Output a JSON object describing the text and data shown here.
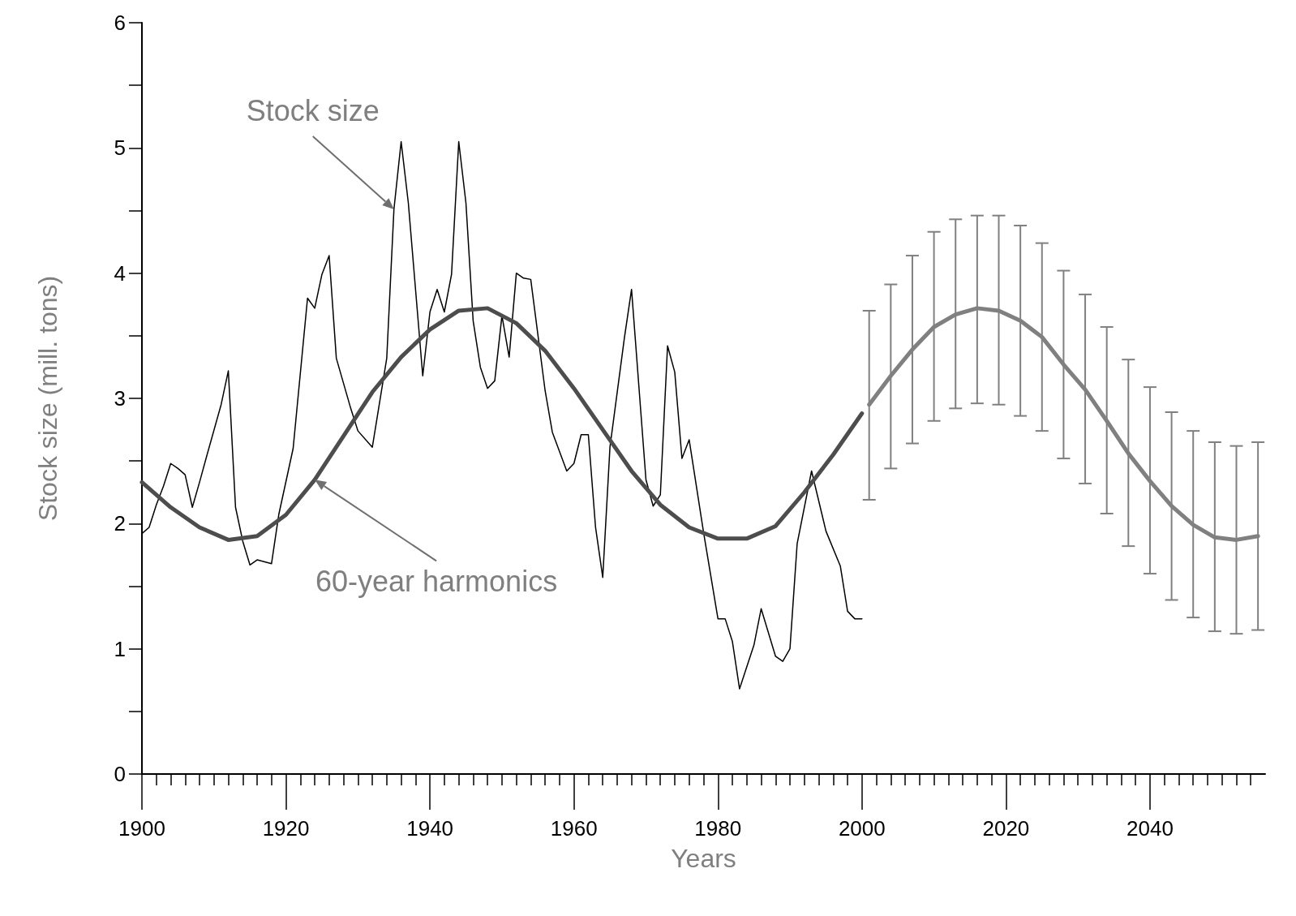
{
  "chart_data": {
    "type": "line",
    "xlabel": "Years",
    "ylabel": "Stock size (mill. tons)",
    "xlim": [
      1900,
      2056
    ],
    "ylim": [
      0,
      6
    ],
    "xticks": [
      1900,
      {
        "value": 1902,
        "label": null
      },
      {
        "value": 1904,
        "label": null
      },
      {
        "value": 1906,
        "label": null
      },
      {
        "value": 1908,
        "label": null
      },
      {
        "value": 1910,
        "label": null
      },
      {
        "value": 1912,
        "label": null
      },
      {
        "value": 1914,
        "label": null
      },
      {
        "value": 1916,
        "label": null
      },
      {
        "value": 1918,
        "label": null
      },
      1920,
      {
        "value": 1922,
        "label": null
      },
      {
        "value": 1924,
        "label": null
      },
      {
        "value": 1926,
        "label": null
      },
      {
        "value": 1928,
        "label": null
      },
      {
        "value": 1930,
        "label": null
      },
      {
        "value": 1932,
        "label": null
      },
      {
        "value": 1934,
        "label": null
      },
      {
        "value": 1936,
        "label": null
      },
      {
        "value": 1938,
        "label": null
      },
      1940,
      {
        "value": 1942,
        "label": null
      },
      {
        "value": 1944,
        "label": null
      },
      {
        "value": 1946,
        "label": null
      },
      {
        "value": 1948,
        "label": null
      },
      {
        "value": 1950,
        "label": null
      },
      {
        "value": 1952,
        "label": null
      },
      {
        "value": 1954,
        "label": null
      },
      {
        "value": 1956,
        "label": null
      },
      {
        "value": 1958,
        "label": null
      },
      1960,
      {
        "value": 1962,
        "label": null
      },
      {
        "value": 1964,
        "label": null
      },
      {
        "value": 1966,
        "label": null
      },
      {
        "value": 1968,
        "label": null
      },
      {
        "value": 1970,
        "label": null
      },
      {
        "value": 1972,
        "label": null
      },
      {
        "value": 1974,
        "label": null
      },
      {
        "value": 1976,
        "label": null
      },
      {
        "value": 1978,
        "label": null
      },
      1980,
      {
        "value": 1982,
        "label": null
      },
      {
        "value": 1984,
        "label": null
      },
      {
        "value": 1986,
        "label": null
      },
      {
        "value": 1988,
        "label": null
      },
      {
        "value": 1990,
        "label": null
      },
      {
        "value": 1992,
        "label": null
      },
      {
        "value": 1994,
        "label": null
      },
      {
        "value": 1996,
        "label": null
      },
      {
        "value": 1998,
        "label": null
      },
      2000,
      {
        "value": 2002,
        "label": null
      },
      {
        "value": 2004,
        "label": null
      },
      {
        "value": 2006,
        "label": null
      },
      {
        "value": 2008,
        "label": null
      },
      {
        "value": 2010,
        "label": null
      },
      {
        "value": 2012,
        "label": null
      },
      {
        "value": 2014,
        "label": null
      },
      {
        "value": 2016,
        "label": null
      },
      {
        "value": 2018,
        "label": null
      },
      2020,
      {
        "value": 2022,
        "label": null
      },
      {
        "value": 2024,
        "label": null
      },
      {
        "value": 2026,
        "label": null
      },
      {
        "value": 2028,
        "label": null
      },
      {
        "value": 2030,
        "label": null
      },
      {
        "value": 2032,
        "label": null
      },
      {
        "value": 2034,
        "label": null
      },
      {
        "value": 2036,
        "label": null
      },
      {
        "value": 2038,
        "label": null
      },
      2040,
      {
        "value": 2042,
        "label": null
      },
      {
        "value": 2044,
        "label": null
      },
      {
        "value": 2046,
        "label": null
      },
      {
        "value": 2048,
        "label": null
      },
      {
        "value": 2050,
        "label": null
      },
      {
        "value": 2052,
        "label": null
      },
      {
        "value": 2054,
        "label": null
      }
    ],
    "yticks": [
      0,
      {
        "value": 0.5,
        "label": null
      },
      1,
      {
        "value": 1.5,
        "label": null
      },
      2,
      {
        "value": 2.5,
        "label": null
      },
      3,
      {
        "value": 3.5,
        "label": null
      },
      4,
      {
        "value": 4.5,
        "label": null
      },
      5,
      {
        "value": 5.5,
        "label": null
      },
      6
    ],
    "grid": false,
    "legend": false,
    "marker": "none",
    "series": [
      {
        "name": "Stock size",
        "color": "#000000",
        "x": [
          1900,
          1901,
          1902,
          1903,
          1904,
          1905,
          1906,
          1907,
          1908,
          1909,
          1911,
          1912,
          1913,
          1914,
          1915,
          1916,
          1918,
          1919,
          1921,
          1923,
          1924,
          1925,
          1926,
          1927,
          1929,
          1930,
          1932,
          1934,
          1935,
          1936,
          1937,
          1939,
          1940,
          1941,
          1942,
          1943,
          1944,
          1945,
          1946,
          1947,
          1948,
          1949,
          1950,
          1951,
          1952,
          1953,
          1954,
          1956,
          1957,
          1959,
          1960,
          1961,
          1962,
          1963,
          1964,
          1965,
          1967,
          1968,
          1970,
          1971,
          1972,
          1973,
          1974,
          1975,
          1976,
          1978,
          1980,
          1981,
          1982,
          1983,
          1985,
          1986,
          1988,
          1989,
          1990,
          1991,
          1993,
          1995,
          1997,
          1998,
          1999,
          2000
        ],
        "values": [
          1.92,
          1.97,
          2.15,
          2.3,
          2.48,
          2.44,
          2.39,
          2.13,
          2.33,
          2.54,
          2.95,
          3.22,
          2.13,
          1.86,
          1.67,
          1.71,
          1.68,
          2.07,
          2.6,
          3.8,
          3.72,
          3.99,
          4.14,
          3.32,
          2.92,
          2.74,
          2.61,
          3.32,
          4.51,
          5.05,
          4.56,
          3.18,
          3.69,
          3.87,
          3.69,
          3.99,
          5.05,
          4.56,
          3.62,
          3.25,
          3.08,
          3.14,
          3.66,
          3.33,
          4.0,
          3.96,
          3.95,
          3.06,
          2.73,
          2.42,
          2.48,
          2.71,
          2.71,
          1.97,
          1.57,
          2.61,
          3.48,
          3.87,
          2.35,
          2.14,
          2.23,
          3.42,
          3.21,
          2.52,
          2.67,
          1.93,
          1.24,
          1.24,
          1.06,
          0.68,
          1.03,
          1.32,
          0.94,
          0.9,
          1.0,
          1.84,
          2.42,
          1.94,
          1.66,
          1.3,
          1.24,
          1.24
        ]
      },
      {
        "name": "60-year harmonics",
        "color": "#4d4d4d",
        "x": [
          1900,
          1904,
          1908,
          1912,
          1916,
          1920,
          1924,
          1928,
          1932,
          1936,
          1940,
          1944,
          1948,
          1952,
          1956,
          1960,
          1964,
          1968,
          1972,
          1976,
          1980,
          1984,
          1988,
          1992,
          1996,
          2000
        ],
        "values": [
          2.33,
          2.13,
          1.97,
          1.87,
          1.9,
          2.07,
          2.35,
          2.7,
          3.05,
          3.33,
          3.55,
          3.7,
          3.72,
          3.6,
          3.38,
          3.08,
          2.75,
          2.42,
          2.15,
          1.97,
          1.88,
          1.88,
          1.98,
          2.25,
          2.55,
          2.88
        ]
      },
      {
        "color": "#808080",
        "x": [
          2001,
          2004,
          2007,
          2010,
          2013,
          2016,
          2019,
          2022,
          2025,
          2028,
          2031,
          2034,
          2037,
          2040,
          2043,
          2046,
          2049,
          2052,
          2055
        ],
        "values": [
          2.95,
          3.18,
          3.39,
          3.57,
          3.67,
          3.72,
          3.7,
          3.62,
          3.49,
          3.27,
          3.07,
          2.82,
          2.56,
          2.34,
          2.14,
          1.99,
          1.89,
          1.87,
          1.9
        ],
        "errors": [
          [
            2.19,
            3.7
          ],
          [
            2.44,
            3.91
          ],
          [
            2.64,
            4.14
          ],
          [
            2.82,
            4.33
          ],
          [
            2.92,
            4.43
          ],
          [
            2.96,
            4.46
          ],
          [
            2.95,
            4.46
          ],
          [
            2.86,
            4.38
          ],
          [
            2.74,
            4.24
          ],
          [
            2.52,
            4.02
          ],
          [
            2.32,
            3.83
          ],
          [
            2.08,
            3.57
          ],
          [
            1.82,
            3.31
          ],
          [
            1.6,
            3.09
          ],
          [
            1.39,
            2.89
          ],
          [
            1.25,
            2.74
          ],
          [
            1.14,
            2.65
          ],
          [
            1.12,
            2.62
          ],
          [
            1.15,
            2.65
          ]
        ]
      }
    ]
  }
}
